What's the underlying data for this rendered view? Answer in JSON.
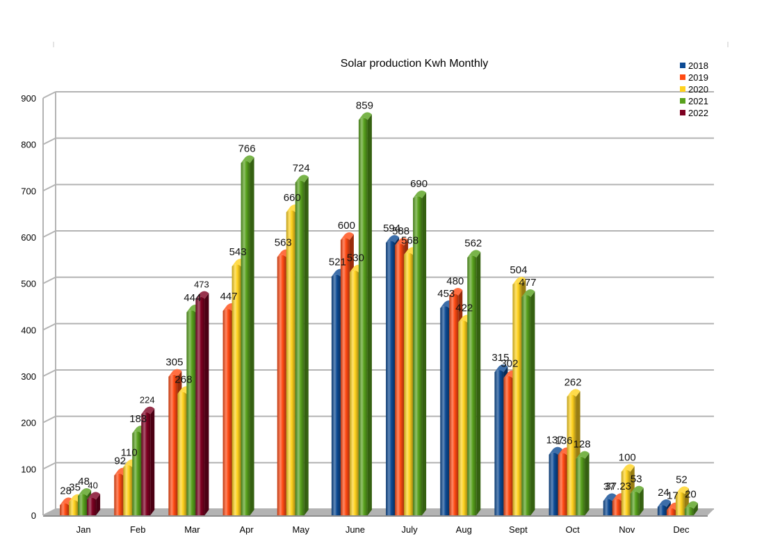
{
  "chart_data": {
    "type": "bar",
    "title": "Solar production Kwh Monthly",
    "xlabel": "",
    "ylabel": "",
    "ylim": [
      0,
      900
    ],
    "yticks": [
      0,
      100,
      200,
      300,
      400,
      500,
      600,
      700,
      800,
      900
    ],
    "grid": true,
    "legend": "top-right",
    "categories": [
      "Jan",
      "Feb",
      "Mar",
      "Apr",
      "May",
      "June",
      "July",
      "Aug",
      "Sept",
      "Oct",
      "Nov",
      "Dec"
    ],
    "series": [
      {
        "name": "2018",
        "color": "#0c4a94",
        "values": [
          null,
          null,
          null,
          null,
          null,
          521,
          594,
          453,
          315,
          137,
          37,
          24
        ],
        "labels": [
          "",
          "",
          "",
          "",
          "",
          "521",
          "594",
          "453",
          "315",
          "137",
          "37",
          "24"
        ]
      },
      {
        "name": "2019",
        "color": "#ff4a12",
        "values": [
          28,
          92,
          305,
          447,
          563,
          600,
          588,
          480,
          302,
          136,
          37.23,
          17
        ],
        "labels": [
          "28",
          "92",
          "305",
          "447",
          "563",
          "600",
          "588",
          "480",
          "302",
          "136",
          "37.23",
          "17"
        ]
      },
      {
        "name": "2020",
        "color": "#ffd21e",
        "values": [
          35,
          110,
          268,
          543,
          660,
          530,
          568,
          422,
          504,
          262,
          100,
          52
        ],
        "labels": [
          "35",
          "110",
          "268",
          "543",
          "660",
          "530",
          "568",
          "422",
          "504",
          "262",
          "100",
          "52"
        ]
      },
      {
        "name": "2021",
        "color": "#58a11d",
        "values": [
          48,
          183,
          444,
          766,
          724,
          859,
          690,
          562,
          477,
          128,
          53,
          20
        ],
        "labels": [
          "48",
          "183",
          "444",
          "766",
          "724",
          "859",
          "690",
          "562",
          "477",
          "128",
          "53",
          "20"
        ]
      },
      {
        "name": "2022",
        "color": "#7e0021",
        "values": [
          40,
          224,
          473,
          null,
          null,
          null,
          null,
          null,
          null,
          null,
          null,
          null
        ],
        "labels": [
          "40",
          "224",
          "473",
          "",
          "",
          "",
          "",
          "",
          "",
          "",
          "",
          ""
        ]
      }
    ]
  }
}
